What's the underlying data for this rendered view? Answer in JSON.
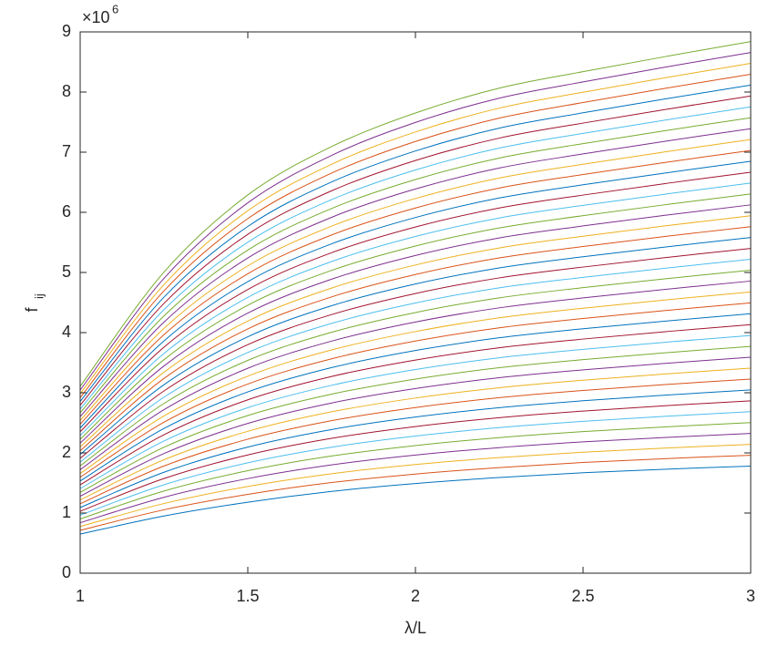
{
  "chart_data": {
    "type": "line",
    "xlabel": "λ/L",
    "ylabel": {
      "base": "f",
      "subscript": "ij"
    },
    "y_multiplier": {
      "base": "×10",
      "exponent": "6"
    },
    "x": [
      1,
      1.25,
      1.5,
      1.75,
      2,
      2.25,
      2.5,
      2.75,
      3
    ],
    "xlim": [
      1,
      3
    ],
    "xticks": [
      1,
      1.5,
      2,
      2.5,
      3
    ],
    "ylim": [
      0,
      9
    ],
    "yticks": [
      0,
      1,
      2,
      3,
      4,
      5,
      6,
      7,
      8,
      9
    ],
    "grid": false,
    "series": [
      {
        "color": "#0072BD",
        "values": [
          0.65,
          0.95,
          1.18,
          1.36,
          1.49,
          1.59,
          1.67,
          1.73,
          1.78
        ]
      },
      {
        "color": "#D95319",
        "values": [
          0.713,
          1.054,
          1.311,
          1.507,
          1.648,
          1.756,
          1.841,
          1.906,
          1.961
        ]
      },
      {
        "color": "#EDB120",
        "values": [
          0.776,
          1.158,
          1.442,
          1.654,
          1.806,
          1.922,
          2.012,
          2.082,
          2.142
        ]
      },
      {
        "color": "#7E2F8E",
        "values": [
          0.839,
          1.262,
          1.573,
          1.801,
          1.964,
          2.088,
          2.183,
          2.258,
          2.323
        ]
      },
      {
        "color": "#77AC30",
        "values": [
          0.902,
          1.366,
          1.704,
          1.948,
          2.122,
          2.254,
          2.354,
          2.434,
          2.504
        ]
      },
      {
        "color": "#4DBEEE",
        "values": [
          0.965,
          1.47,
          1.835,
          2.095,
          2.28,
          2.42,
          2.525,
          2.61,
          2.685
        ]
      },
      {
        "color": "#A2142F",
        "values": [
          1.028,
          1.574,
          1.966,
          2.242,
          2.438,
          2.586,
          2.696,
          2.786,
          2.866
        ]
      },
      {
        "color": "#0072BD",
        "values": [
          1.091,
          1.678,
          2.097,
          2.389,
          2.596,
          2.752,
          2.867,
          2.962,
          3.047
        ]
      },
      {
        "color": "#D95319",
        "values": [
          1.154,
          1.782,
          2.228,
          2.536,
          2.754,
          2.918,
          3.038,
          3.138,
          3.228
        ]
      },
      {
        "color": "#EDB120",
        "values": [
          1.217,
          1.886,
          2.359,
          2.683,
          2.912,
          3.084,
          3.209,
          3.314,
          3.409
        ]
      },
      {
        "color": "#7E2F8E",
        "values": [
          1.28,
          1.99,
          2.49,
          2.83,
          3.07,
          3.25,
          3.38,
          3.49,
          3.59
        ]
      },
      {
        "color": "#77AC30",
        "values": [
          1.343,
          2.094,
          2.621,
          2.977,
          3.228,
          3.416,
          3.551,
          3.666,
          3.771
        ]
      },
      {
        "color": "#4DBEEE",
        "values": [
          1.406,
          2.198,
          2.752,
          3.124,
          3.386,
          3.582,
          3.722,
          3.842,
          3.952
        ]
      },
      {
        "color": "#A2142F",
        "values": [
          1.469,
          2.302,
          2.883,
          3.271,
          3.544,
          3.748,
          3.893,
          4.018,
          4.133
        ]
      },
      {
        "color": "#0072BD",
        "values": [
          1.532,
          2.406,
          3.014,
          3.418,
          3.702,
          3.914,
          4.064,
          4.194,
          4.314
        ]
      },
      {
        "color": "#D95319",
        "values": [
          1.595,
          2.51,
          3.145,
          3.565,
          3.86,
          4.08,
          4.235,
          4.37,
          4.495
        ]
      },
      {
        "color": "#EDB120",
        "values": [
          1.658,
          2.614,
          3.276,
          3.712,
          4.018,
          4.246,
          4.406,
          4.546,
          4.676
        ]
      },
      {
        "color": "#7E2F8E",
        "values": [
          1.721,
          2.718,
          3.407,
          3.859,
          4.176,
          4.412,
          4.577,
          4.722,
          4.857
        ]
      },
      {
        "color": "#77AC30",
        "values": [
          1.784,
          2.822,
          3.538,
          4.006,
          4.334,
          4.578,
          4.748,
          4.898,
          5.038
        ]
      },
      {
        "color": "#4DBEEE",
        "values": [
          1.847,
          2.926,
          3.669,
          4.153,
          4.492,
          4.744,
          4.919,
          5.074,
          5.219
        ]
      },
      {
        "color": "#A2142F",
        "values": [
          1.91,
          3.03,
          3.8,
          4.3,
          4.65,
          4.91,
          5.09,
          5.25,
          5.4
        ]
      },
      {
        "color": "#0072BD",
        "values": [
          1.973,
          3.134,
          3.931,
          4.447,
          4.808,
          5.076,
          5.261,
          5.426,
          5.581
        ]
      },
      {
        "color": "#D95319",
        "values": [
          2.036,
          3.238,
          4.062,
          4.594,
          4.966,
          5.242,
          5.432,
          5.602,
          5.762
        ]
      },
      {
        "color": "#EDB120",
        "values": [
          2.099,
          3.342,
          4.193,
          4.741,
          5.124,
          5.408,
          5.603,
          5.778,
          5.943
        ]
      },
      {
        "color": "#7E2F8E",
        "values": [
          2.162,
          3.446,
          4.324,
          4.888,
          5.282,
          5.574,
          5.774,
          5.954,
          6.124
        ]
      },
      {
        "color": "#77AC30",
        "values": [
          2.225,
          3.55,
          4.455,
          5.035,
          5.44,
          5.74,
          5.945,
          6.13,
          6.305
        ]
      },
      {
        "color": "#4DBEEE",
        "values": [
          2.288,
          3.654,
          4.586,
          5.182,
          5.598,
          5.906,
          6.116,
          6.306,
          6.486
        ]
      },
      {
        "color": "#A2142F",
        "values": [
          2.351,
          3.758,
          4.717,
          5.329,
          5.756,
          6.072,
          6.287,
          6.482,
          6.667
        ]
      },
      {
        "color": "#0072BD",
        "values": [
          2.414,
          3.862,
          4.848,
          5.476,
          5.914,
          6.238,
          6.458,
          6.658,
          6.848
        ]
      },
      {
        "color": "#D95319",
        "values": [
          2.477,
          3.966,
          4.979,
          5.623,
          6.072,
          6.404,
          6.629,
          6.834,
          7.029
        ]
      },
      {
        "color": "#EDB120",
        "values": [
          2.54,
          4.07,
          5.11,
          5.77,
          6.23,
          6.57,
          6.8,
          7.01,
          7.21
        ]
      },
      {
        "color": "#7E2F8E",
        "values": [
          2.603,
          4.174,
          5.241,
          5.917,
          6.388,
          6.736,
          6.971,
          7.186,
          7.391
        ]
      },
      {
        "color": "#77AC30",
        "values": [
          2.666,
          4.278,
          5.372,
          6.064,
          6.546,
          6.902,
          7.142,
          7.362,
          7.572
        ]
      },
      {
        "color": "#4DBEEE",
        "values": [
          2.729,
          4.382,
          5.503,
          6.211,
          6.704,
          7.068,
          7.313,
          7.538,
          7.753
        ]
      },
      {
        "color": "#A2142F",
        "values": [
          2.792,
          4.486,
          5.634,
          6.358,
          6.862,
          7.234,
          7.484,
          7.714,
          7.934
        ]
      },
      {
        "color": "#0072BD",
        "values": [
          2.855,
          4.59,
          5.765,
          6.505,
          7.02,
          7.4,
          7.655,
          7.89,
          8.115
        ]
      },
      {
        "color": "#D95319",
        "values": [
          2.918,
          4.694,
          5.896,
          6.652,
          7.178,
          7.566,
          7.826,
          8.066,
          8.296
        ]
      },
      {
        "color": "#EDB120",
        "values": [
          2.981,
          4.798,
          6.027,
          6.799,
          7.336,
          7.732,
          7.997,
          8.242,
          8.477
        ]
      },
      {
        "color": "#7E2F8E",
        "values": [
          3.044,
          4.902,
          6.158,
          6.946,
          7.494,
          7.898,
          8.168,
          8.418,
          8.658
        ]
      },
      {
        "color": "#77AC30",
        "values": [
          3.107,
          5.006,
          6.289,
          7.093,
          7.652,
          8.064,
          8.339,
          8.594,
          8.839
        ]
      }
    ]
  }
}
